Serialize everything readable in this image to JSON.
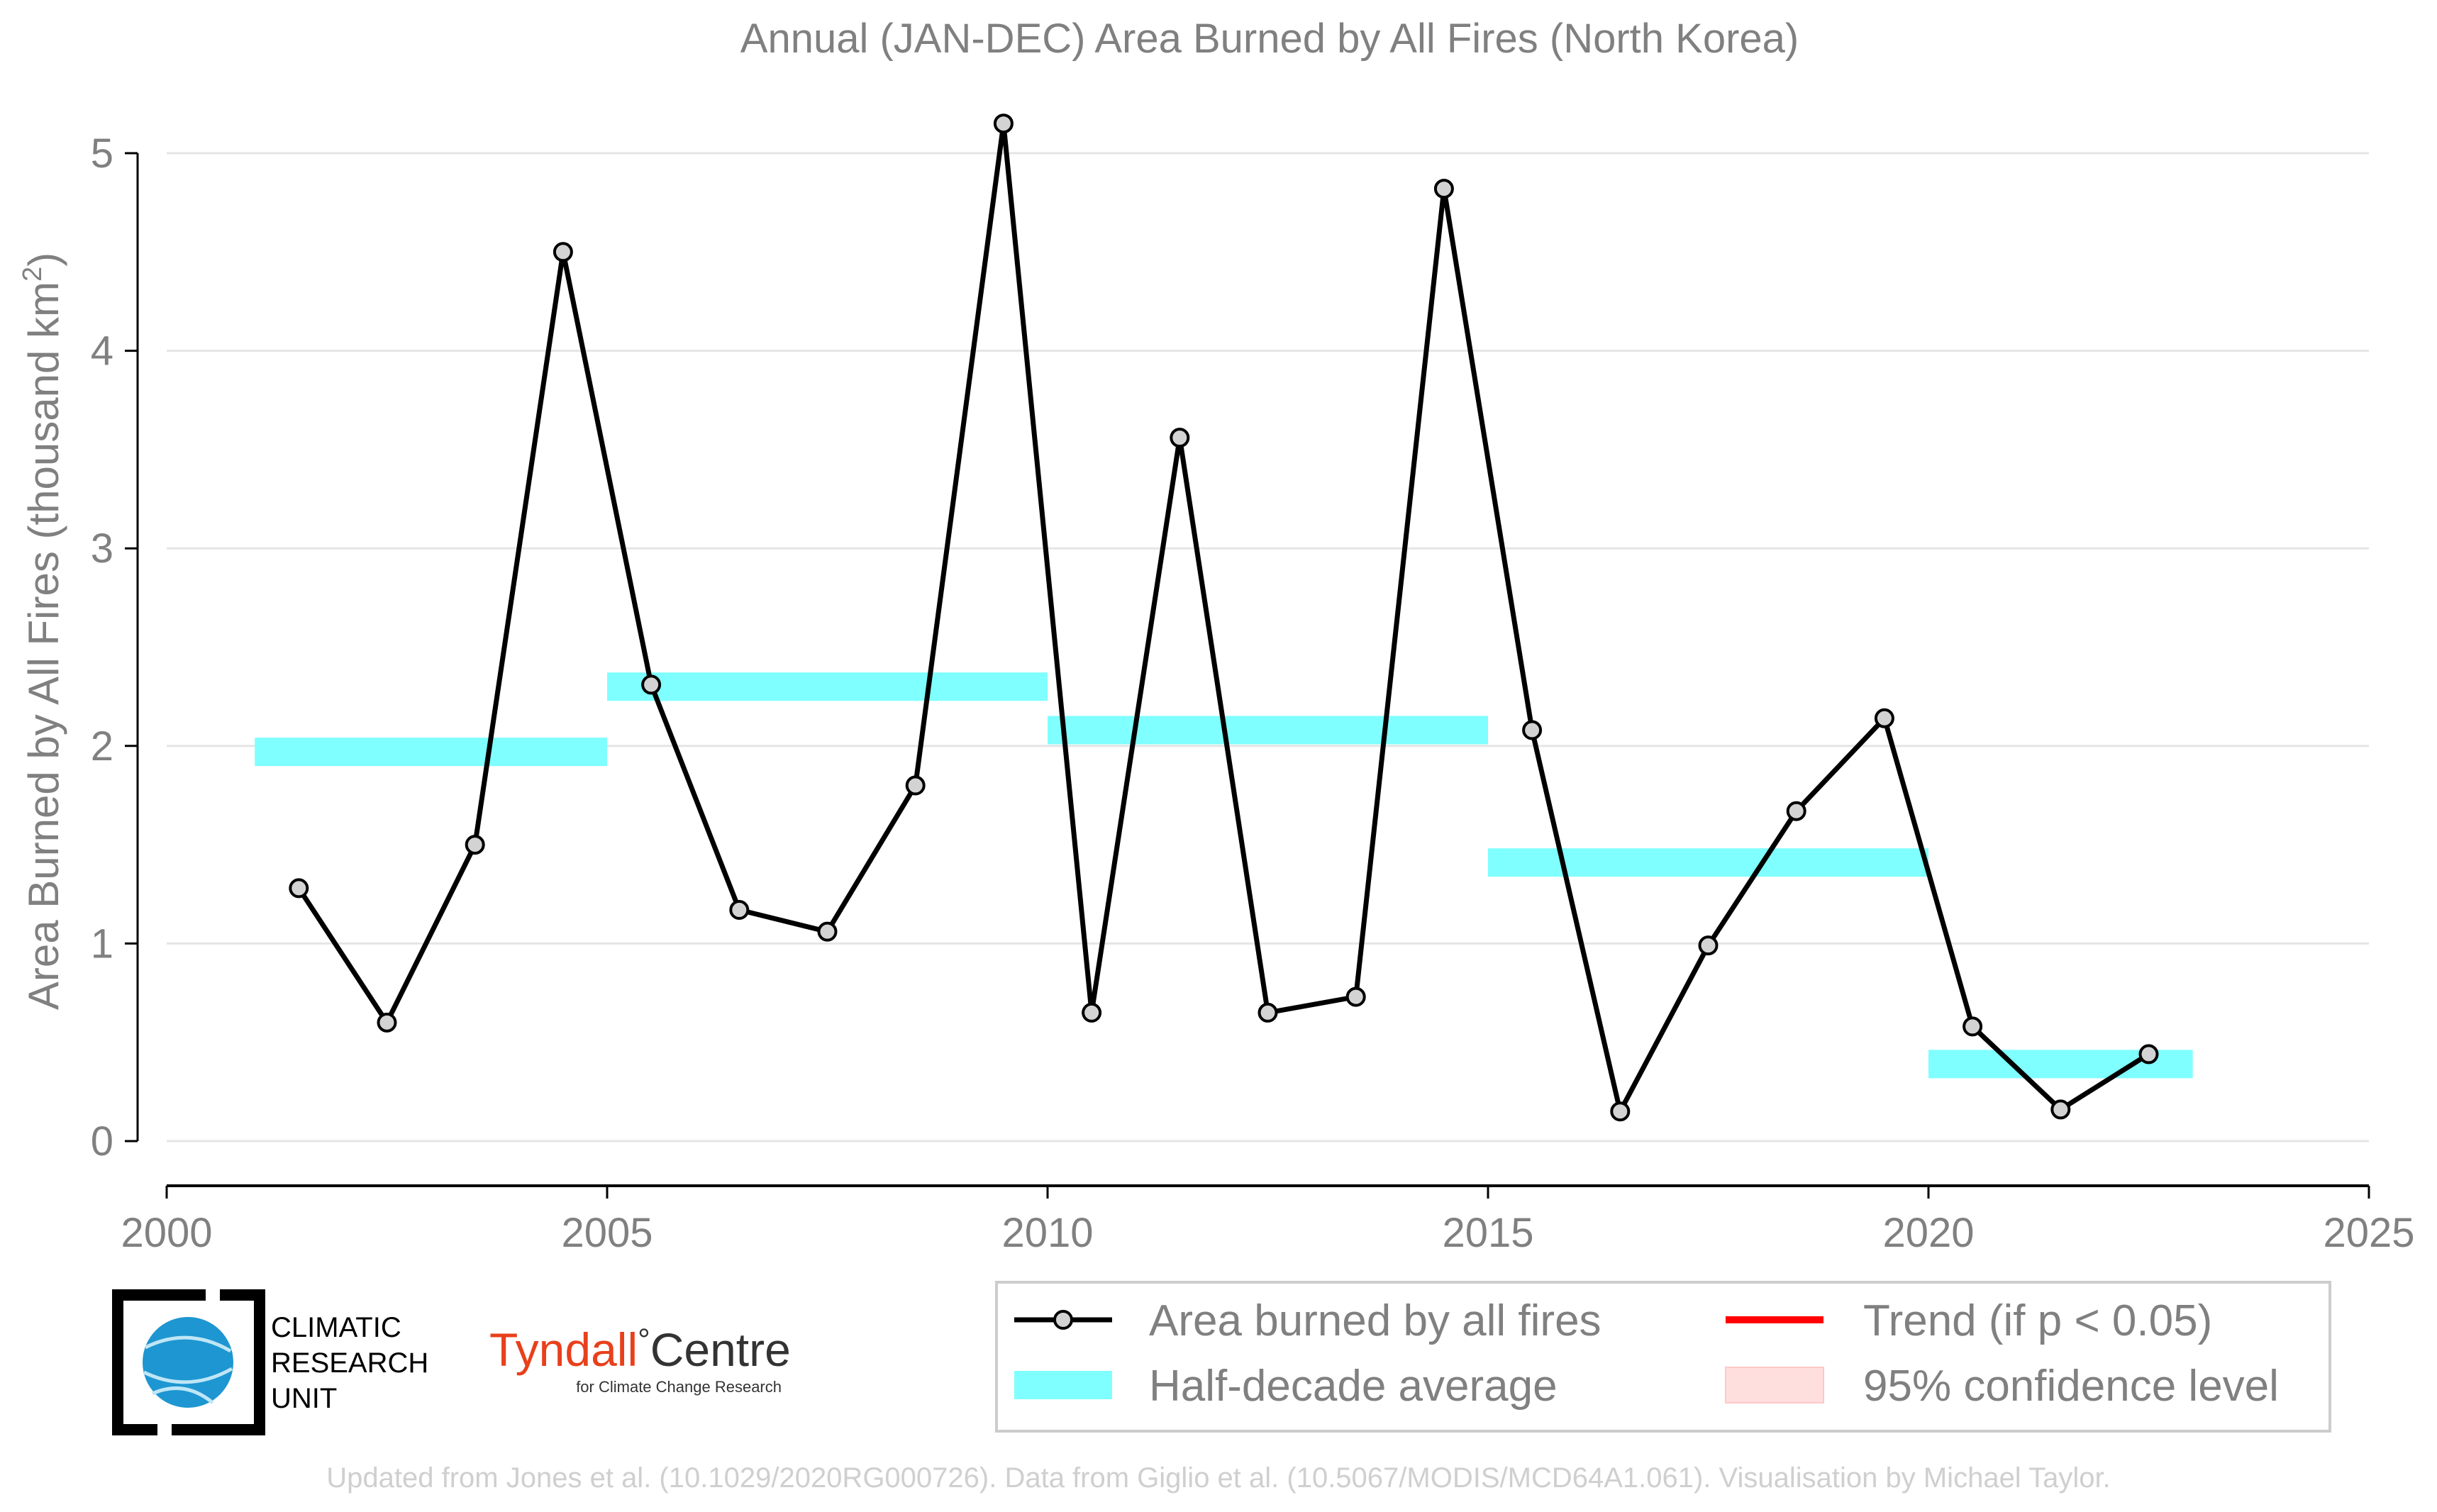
{
  "chart_data": {
    "type": "line",
    "title": "Annual (JAN-DEC) Area Burned by All Fires (North Korea)",
    "ylabel": "Area Burned by All Fires (thousand km",
    "ylabel_superscript": "2",
    "ylabel_close": ")",
    "xlabel": "",
    "xlim": [
      2000,
      2025
    ],
    "ylim": [
      -0.2,
      5.2
    ],
    "x_ticks": [
      "2000",
      "2005",
      "2010",
      "2015",
      "2020",
      "2025"
    ],
    "y_ticks": [
      "0",
      "1",
      "2",
      "3",
      "4",
      "5"
    ],
    "grid": "horizontal",
    "series": [
      {
        "name": "Area burned by all fires",
        "color": "#000000",
        "marker_fill": "#d3d3d3",
        "x": [
          2001.5,
          2002.5,
          2003.5,
          2004.5,
          2005.5,
          2006.5,
          2007.5,
          2008.5,
          2009.5,
          2010.5,
          2011.5,
          2012.5,
          2013.5,
          2014.5,
          2015.5,
          2016.5,
          2017.5,
          2018.5,
          2019.5,
          2020.5,
          2021.5,
          2022.5
        ],
        "values": [
          1.28,
          0.6,
          1.5,
          4.5,
          2.31,
          1.17,
          1.06,
          1.8,
          5.15,
          0.65,
          3.56,
          0.65,
          0.73,
          4.82,
          2.08,
          0.15,
          0.99,
          1.67,
          2.14,
          0.58,
          0.16,
          0.44
        ]
      }
    ],
    "half_decade_average": {
      "name": "Half-decade average",
      "color": "#7fffff",
      "segments": [
        {
          "x0": 2001,
          "x1": 2005,
          "value": 1.97
        },
        {
          "x0": 2005,
          "x1": 2010,
          "value": 2.3
        },
        {
          "x0": 2010,
          "x1": 2015,
          "value": 2.08
        },
        {
          "x0": 2015,
          "x1": 2020,
          "value": 1.41
        },
        {
          "x0": 2020,
          "x1": 2023,
          "value": 0.39
        }
      ]
    },
    "legend": {
      "position": "bottom-right",
      "entries": [
        {
          "label": "Area burned by all fires",
          "kind": "line-marker",
          "color": "#000000"
        },
        {
          "label": "Trend (if p < 0.05)",
          "kind": "line",
          "color": "#ff0000"
        },
        {
          "label": "Half-decade average",
          "kind": "band",
          "color": "#7fffff"
        },
        {
          "label": "95% confidence level",
          "kind": "patch",
          "color": "#ffdede"
        }
      ]
    }
  },
  "logos": {
    "cru": {
      "line1": "CLIMATIC",
      "line2": "RESEARCH",
      "line3": "UNIT"
    },
    "tyndall": {
      "name": "Tyndall",
      "degree": "°",
      "centre": "Centre",
      "tagline": "for Climate Change Research",
      "color": "#e8401c"
    }
  },
  "footer": "Updated from Jones et al. (10.1029/2020RG000726). Data from Giglio et al. (10.5067/MODIS/MCD64A1.061). Visualisation by Michael Taylor."
}
